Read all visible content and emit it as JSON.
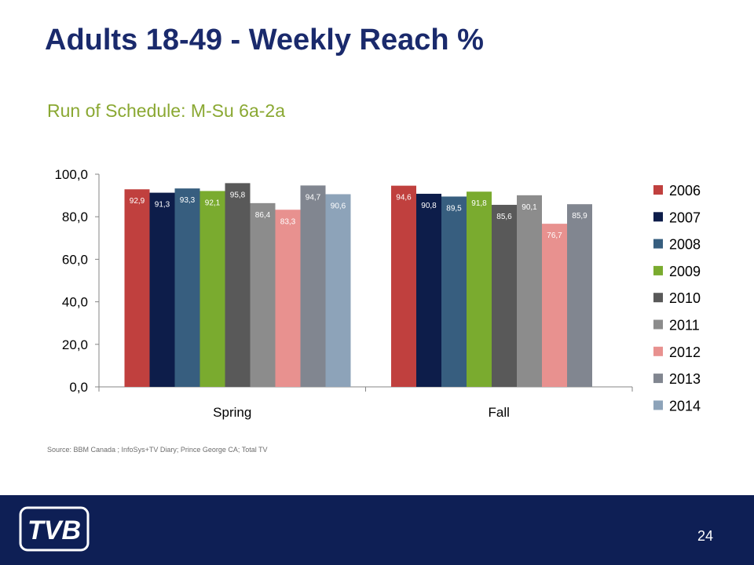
{
  "slide": {
    "title": "Adults 18-49 - Weekly Reach %",
    "subtitle": "Run of Schedule: M-Su 6a-2a",
    "source": "Source: BBM Canada ; InfoSys+TV Diary; Prince George CA; Total TV",
    "page_number": "24",
    "logo_text": "TVB"
  },
  "chart_data": {
    "type": "bar",
    "title": "",
    "xlabel": "",
    "ylabel": "",
    "ylim": [
      0,
      100
    ],
    "yticks": [
      "0,0",
      "20,0",
      "40,0",
      "60,0",
      "80,0",
      "100,0"
    ],
    "categories": [
      "Spring",
      "Fall"
    ],
    "legend_position": "right",
    "grid": false,
    "series": [
      {
        "name": "2006",
        "color": "#c0403e",
        "values": [
          92.9,
          94.6
        ],
        "labels": [
          "92,9",
          "94,6"
        ]
      },
      {
        "name": "2007",
        "color": "#0d1d4a",
        "values": [
          91.3,
          90.8
        ],
        "labels": [
          "91,3",
          "90,8"
        ]
      },
      {
        "name": "2008",
        "color": "#375e7f",
        "values": [
          93.3,
          89.5
        ],
        "labels": [
          "93,3",
          "89,5"
        ]
      },
      {
        "name": "2009",
        "color": "#7aab2f",
        "values": [
          92.1,
          91.8
        ],
        "labels": [
          "92,1",
          "91,8"
        ]
      },
      {
        "name": "2010",
        "color": "#595959",
        "values": [
          95.8,
          85.6
        ],
        "labels": [
          "95,8",
          "85,6"
        ]
      },
      {
        "name": "2011",
        "color": "#8c8c8c",
        "values": [
          86.4,
          90.1
        ],
        "labels": [
          "86,4",
          "90,1"
        ]
      },
      {
        "name": "2012",
        "color": "#e8918f",
        "values": [
          83.3,
          76.7
        ],
        "labels": [
          "83,3",
          "76,7"
        ]
      },
      {
        "name": "2013",
        "color": "#818690",
        "values": [
          94.7,
          85.9
        ],
        "labels": [
          "94,7",
          "85,9"
        ]
      },
      {
        "name": "2014",
        "color": "#8da3b9",
        "values": [
          90.6,
          null
        ],
        "labels": [
          "90,6",
          ""
        ]
      }
    ]
  }
}
